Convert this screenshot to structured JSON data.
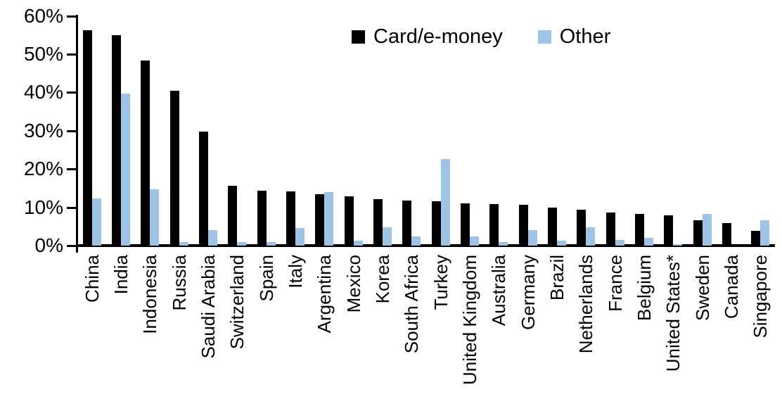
{
  "chart_data": {
    "type": "bar",
    "title": "",
    "xlabel": "",
    "ylabel": "",
    "ylim": [
      0,
      60
    ],
    "ytick_step": 10,
    "ytick_labels": [
      "0%",
      "10%",
      "20%",
      "30%",
      "40%",
      "50%",
      "60%"
    ],
    "grid": false,
    "legend_position": "top-center",
    "categories": [
      "China",
      "India",
      "Indonesia",
      "Russia",
      "Saudi Arabia",
      "Switzerland",
      "Spain",
      "Italy",
      "Argentina",
      "Mexico",
      "Korea",
      "South Africa",
      "Turkey",
      "United Kingdom",
      "Australia",
      "Germany",
      "Brazil",
      "Netherlands",
      "France",
      "Belgium",
      "United States*",
      "Sweden",
      "Canada",
      "Singapore"
    ],
    "series": [
      {
        "name": "Card/e-money",
        "color": "#000000",
        "values": [
          56.3,
          55.0,
          48.3,
          40.5,
          29.8,
          15.7,
          14.3,
          14.1,
          13.4,
          12.9,
          12.2,
          11.7,
          11.6,
          11.1,
          10.8,
          10.6,
          10.0,
          9.3,
          8.7,
          8.2,
          7.9,
          6.6,
          5.9,
          3.9
        ]
      },
      {
        "name": "Other",
        "color": "#9DC3E6",
        "values": [
          12.3,
          39.8,
          14.7,
          1.0,
          4.0,
          0.9,
          1.0,
          4.6,
          13.9,
          1.3,
          4.7,
          2.4,
          22.6,
          2.4,
          1.0,
          4.0,
          1.2,
          4.8,
          1.5,
          2.1,
          0.4,
          8.2,
          0,
          6.7
        ]
      }
    ]
  }
}
